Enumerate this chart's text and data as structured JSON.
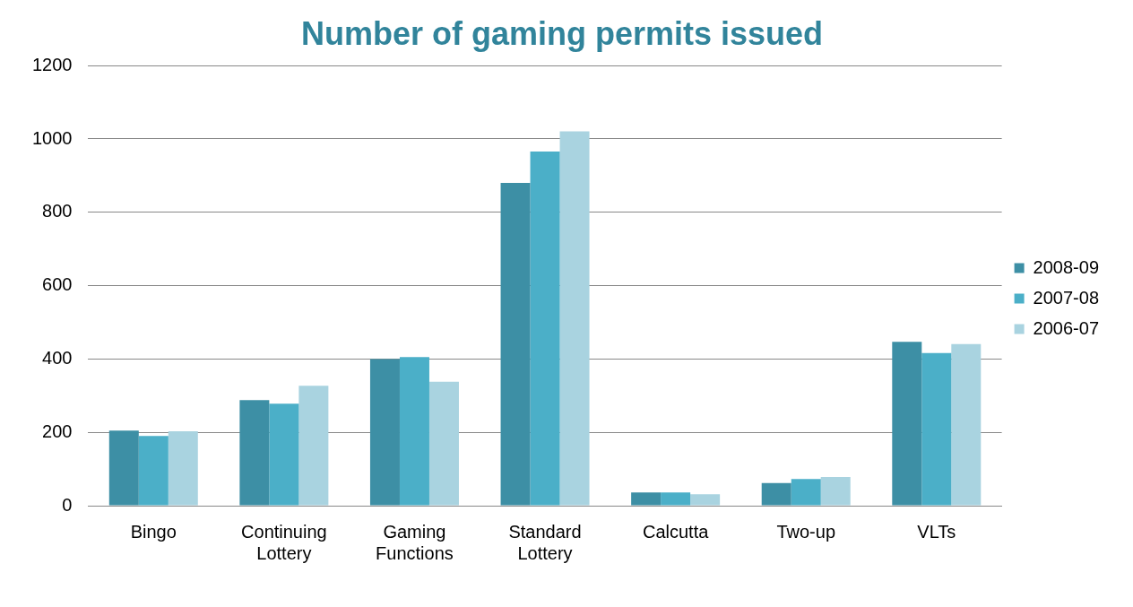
{
  "chart_data": {
    "type": "bar",
    "title": "Number of gaming permits issued",
    "categories": [
      "Bingo",
      "Continuing Lottery",
      "Gaming Functions",
      "Standard Lottery",
      "Calcutta",
      "Two-up",
      "VLTs"
    ],
    "series": [
      {
        "name": "2008-09",
        "color": "#3d8fa5",
        "values": [
          205,
          288,
          400,
          880,
          36,
          62,
          447
        ]
      },
      {
        "name": "2007-08",
        "color": "#4bafc8",
        "values": [
          190,
          278,
          405,
          966,
          36,
          73,
          416
        ]
      },
      {
        "name": "2006-07",
        "color": "#a9d3e0",
        "values": [
          203,
          327,
          338,
          1021,
          31,
          78,
          441
        ]
      }
    ],
    "ylim": [
      0,
      1200
    ],
    "yticks": [
      0,
      200,
      400,
      600,
      800,
      1000,
      1200
    ],
    "grid": "y",
    "legend": "right"
  }
}
